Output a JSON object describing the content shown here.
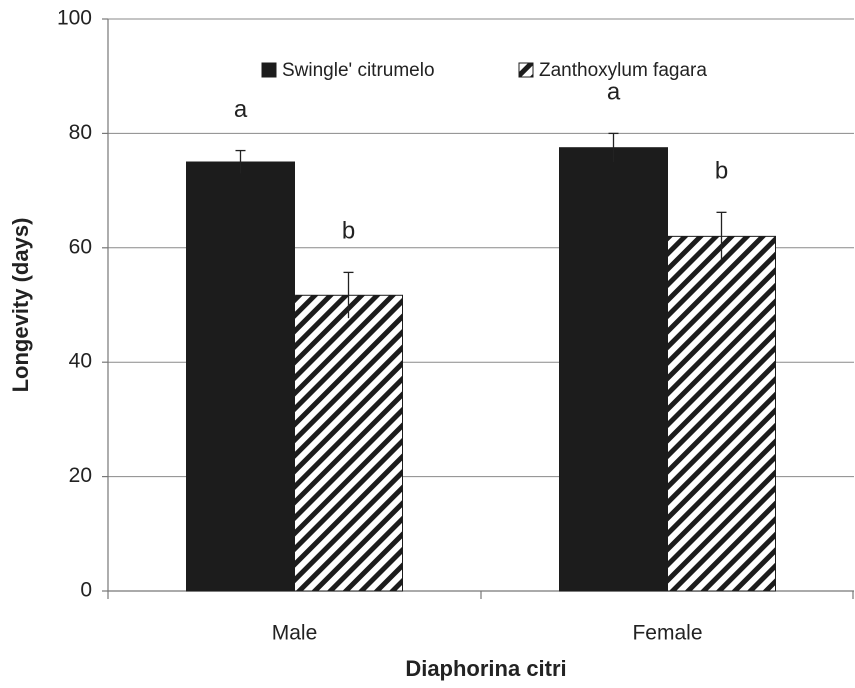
{
  "chart_data": {
    "type": "bar",
    "x_label": "Diaphorina citri",
    "y_label": "Longevity (days)",
    "categories": [
      "Male",
      "Female"
    ],
    "series": [
      {
        "name": "Swingle' citrumelo",
        "color": "#1c1c1c",
        "pattern": "solid",
        "values": [
          75,
          77.5
        ],
        "errors": [
          2,
          2.5
        ],
        "letters": [
          "a",
          "a"
        ]
      },
      {
        "name": "Zanthoxylum fagara",
        "color": "#1c1c1c",
        "pattern": "hatch",
        "values": [
          51.7,
          62
        ],
        "errors": [
          4,
          4.2
        ],
        "letters": [
          "b",
          "b"
        ]
      }
    ],
    "ylim": [
      0,
      100
    ],
    "yticks": [
      0,
      20,
      40,
      60,
      80,
      100
    ],
    "grid": true,
    "legend": "top"
  }
}
